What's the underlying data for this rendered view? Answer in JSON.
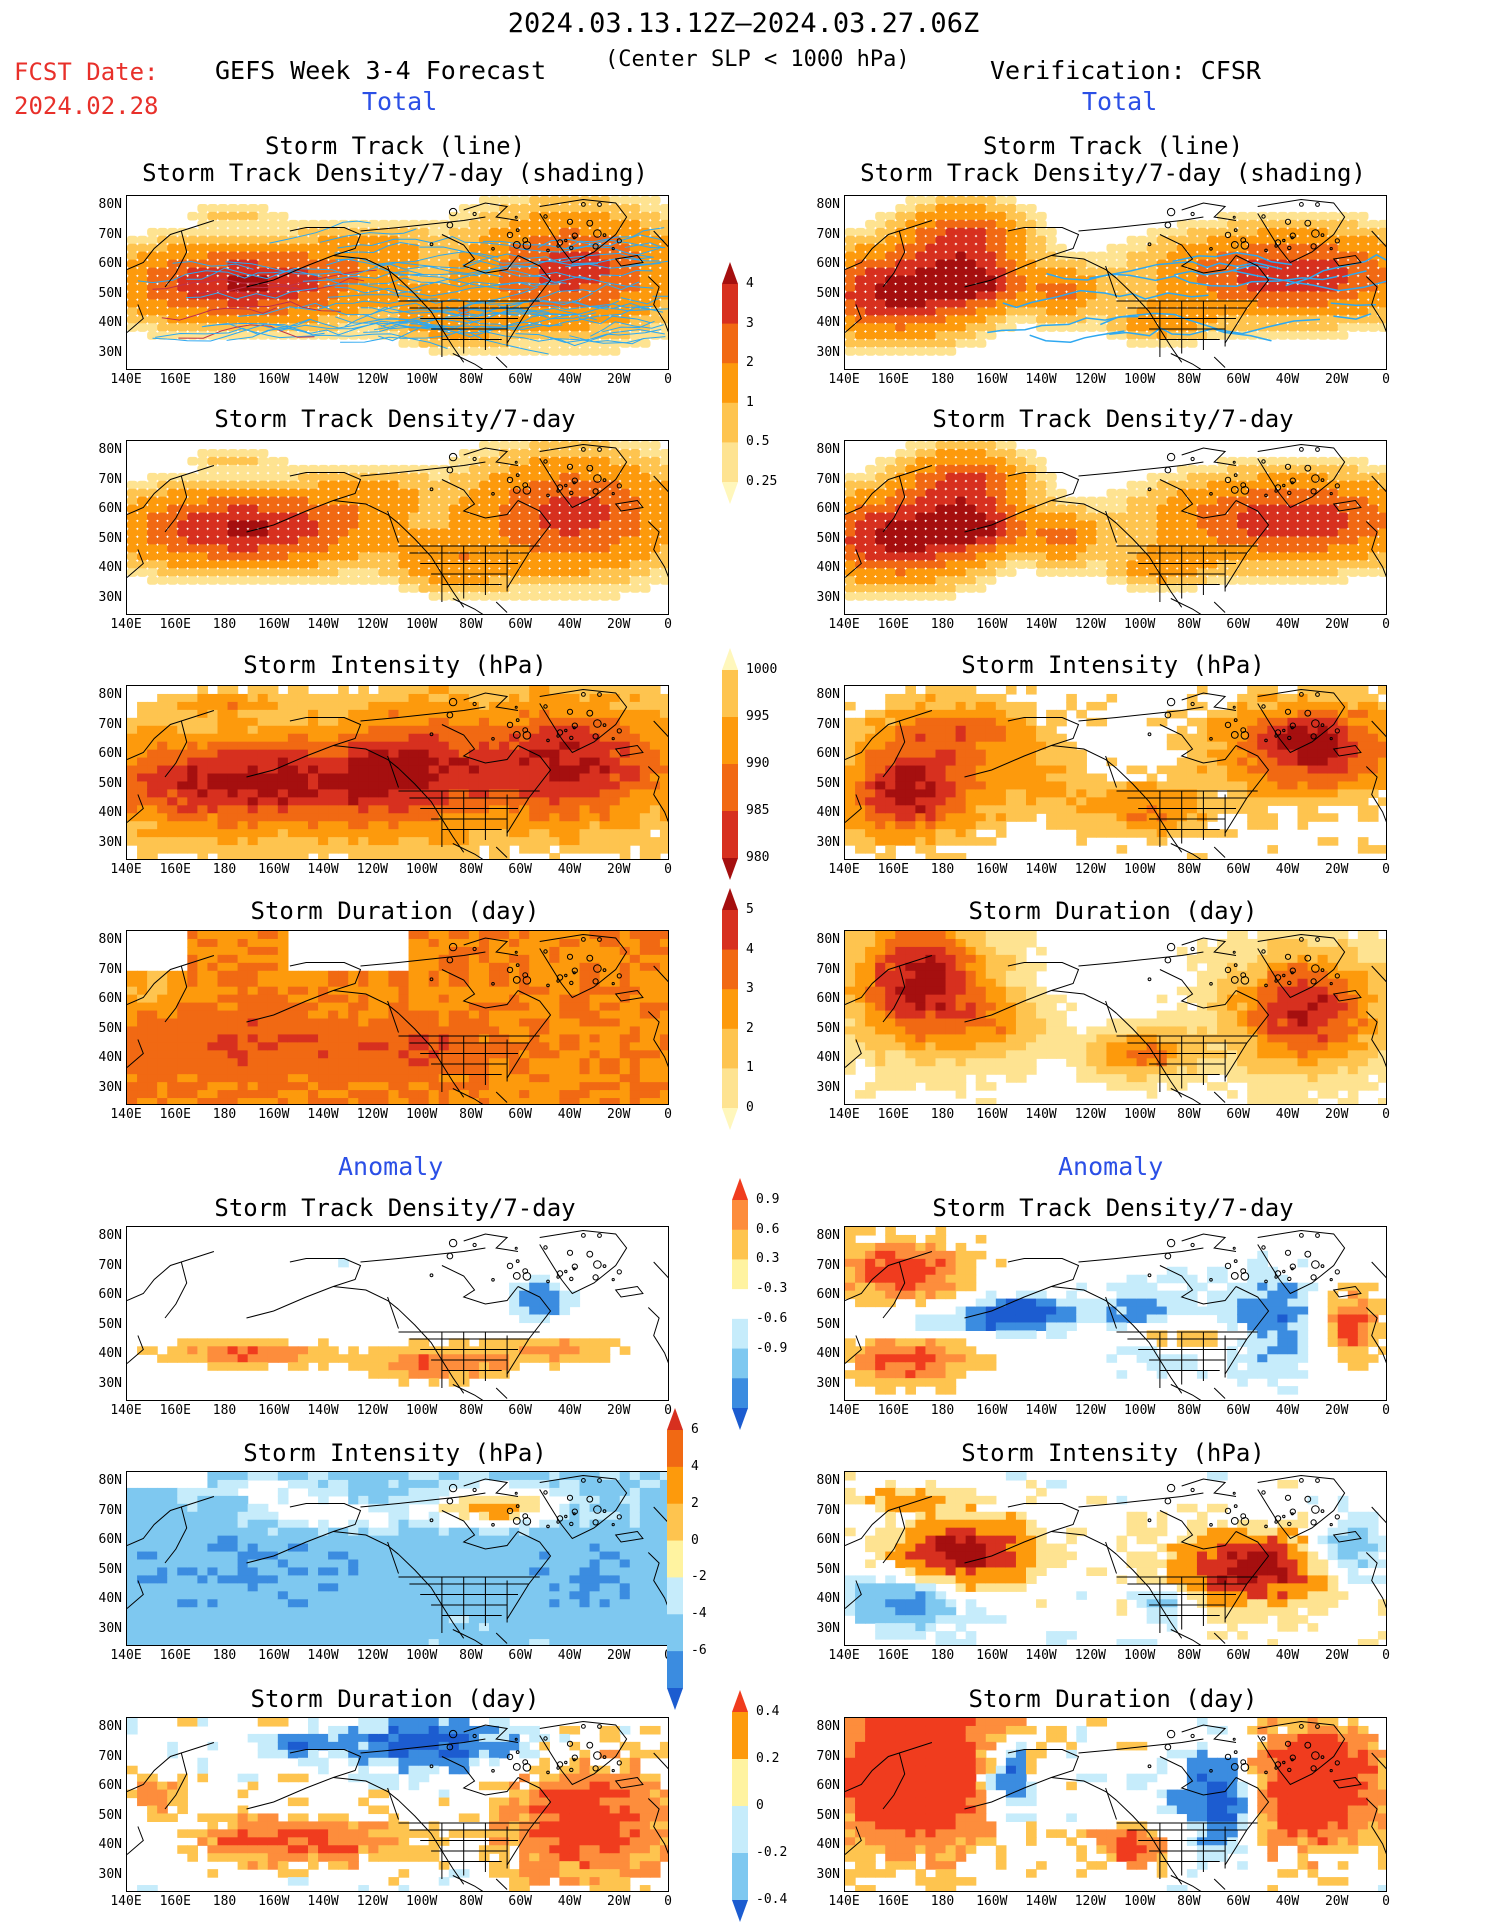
{
  "header": {
    "date_range": "2024.03.13.12Z–2024.03.27.06Z",
    "subtitle": "(Center SLP < 1000 hPa)",
    "fcst_label": "FCST Date:",
    "fcst_date": "2024.02.28",
    "forecast_title": "GEFS Week 3-4 Forecast",
    "verification_title": "Verification: CFSR"
  },
  "sections": {
    "total": "Total",
    "anomaly": "Anomaly"
  },
  "axes": {
    "lat_labels": [
      "80N",
      "70N",
      "60N",
      "50N",
      "40N",
      "30N"
    ],
    "lon_labels": [
      "140E",
      "160E",
      "180",
      "160W",
      "140W",
      "120W",
      "100W",
      "80W",
      "60W",
      "40W",
      "20W",
      "0"
    ]
  },
  "panels": {
    "track_title_1": "Storm Track (line)",
    "track_title_2": "Storm Track Density/7-day (shading)",
    "density_title": "Storm Track Density/7-day",
    "intensity_title": "Storm Intensity (hPa)",
    "duration_title": "Storm Duration (day)"
  },
  "colorbars": {
    "density": {
      "labels": [
        "4",
        "3",
        "2",
        "1",
        "0.5",
        "0.25"
      ],
      "colors": [
        "#a50f0f",
        "#d7301f",
        "#f16913",
        "#fd9a0c",
        "#fec44f",
        "#fee391",
        "#fff7bc"
      ]
    },
    "intensity": {
      "labels": [
        "1000",
        "995",
        "990",
        "985",
        "980"
      ],
      "colors": [
        "#fff7bc",
        "#fec44f",
        "#fd9a0c",
        "#f16913",
        "#d7301f",
        "#a50f0f"
      ]
    },
    "duration": {
      "labels": [
        "5",
        "4",
        "3",
        "2",
        "1",
        "0"
      ],
      "colors": [
        "#a50f0f",
        "#d7301f",
        "#f16913",
        "#fd9a0c",
        "#fec44f",
        "#fee391",
        "#fff7bc"
      ]
    },
    "anom_density": {
      "labels": [
        "0.9",
        "0.6",
        "0.3",
        "-0.3",
        "-0.6",
        "-0.9"
      ],
      "colors": [
        "#f03c1e",
        "#fd8d3c",
        "#fec44f",
        "#fff3a0",
        "#ffffff",
        "#c6ecfb",
        "#7ec8f0",
        "#3b8ce0",
        "#1c5cd0"
      ]
    },
    "anom_intensity": {
      "labels": [
        "6",
        "4",
        "2",
        "0",
        "-2",
        "-4",
        "-6"
      ],
      "colors": [
        "#d7301f",
        "#f16913",
        "#fd9a0c",
        "#fec44f",
        "#fff3a0",
        "#c6ecfb",
        "#7ec8f0",
        "#3b8ce0",
        "#1c5cd0"
      ]
    },
    "anom_duration": {
      "labels": [
        "0.4",
        "0.2",
        "0",
        "-0.2",
        "-0.4"
      ],
      "colors": [
        "#f03c1e",
        "#fd9a0c",
        "#fff3a0",
        "#c6ecfb",
        "#7ec8f0",
        "#1c5cd0"
      ]
    }
  },
  "colors": {
    "track_line": "#2ea8f0",
    "track_line_dense": "#c0304a",
    "section_label": "#2b4fe6",
    "fcst_label": "#e8302a"
  }
}
